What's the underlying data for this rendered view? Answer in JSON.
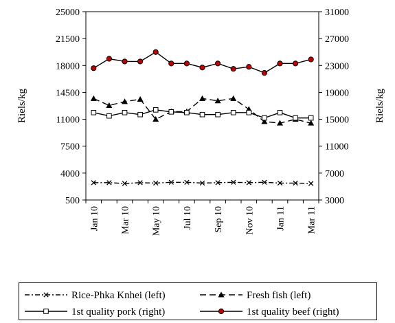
{
  "chart_data": {
    "type": "line",
    "title": "",
    "ylabel_left": "Riels/kg",
    "ylabel_right": "Riels/kg",
    "y_left": {
      "ticks": [
        500,
        4000,
        7500,
        11000,
        14500,
        18000,
        21500,
        25000
      ],
      "lim": [
        500,
        25000
      ]
    },
    "y_right": {
      "ticks": [
        3000,
        7000,
        11000,
        15000,
        19000,
        23000,
        27000,
        31000
      ],
      "lim": [
        3000,
        31000
      ]
    },
    "x": [
      "Jan 10",
      "Feb 10",
      "Mar 10",
      "Apr 10",
      "May 10",
      "Jun 10",
      "Jul 10",
      "Aug 10",
      "Sep 10",
      "Oct 10",
      "Nov 10",
      "Dec 10",
      "Jan 11",
      "Feb 11",
      "Mar 11"
    ],
    "x_tick_labels": [
      "Jan 10",
      "Mar 10",
      "May 10",
      "Jul 10",
      "Sep 10",
      "Nov 10",
      "Jan 11",
      "Mar 11"
    ],
    "grid": false,
    "legend_position": "bottom",
    "series": [
      {
        "name": "Rice-Phka Knhei (left)",
        "axis": "left",
        "color": "#000000",
        "dash": "dashdot",
        "marker": "x",
        "values": [
          2750,
          2750,
          2650,
          2750,
          2700,
          2800,
          2800,
          2700,
          2750,
          2800,
          2750,
          2800,
          2700,
          2700,
          2650
        ]
      },
      {
        "name": "Fresh fish (left)",
        "axis": "left",
        "color": "#000000",
        "dash": "dash",
        "marker": "triangle",
        "values": [
          13700,
          12800,
          13300,
          13600,
          11000,
          12000,
          12000,
          13700,
          13400,
          13700,
          12300,
          10700,
          10500,
          11000,
          10500
        ]
      },
      {
        "name": "1st quality pork (right)",
        "axis": "right",
        "color": "#000000",
        "dash": "solid",
        "marker": "square",
        "values": [
          16000,
          15500,
          16000,
          15700,
          16400,
          16100,
          16000,
          15700,
          15700,
          16000,
          16000,
          15200,
          16000,
          15200,
          15200
        ]
      },
      {
        "name": "1st quality beef (right)",
        "axis": "right",
        "color": "#000000",
        "marker_fill": "#c00000",
        "dash": "solid",
        "marker": "circle",
        "values": [
          22600,
          24000,
          23600,
          23600,
          25000,
          23300,
          23300,
          22700,
          23300,
          22500,
          22800,
          21900,
          23300,
          23300,
          23900
        ]
      }
    ]
  }
}
